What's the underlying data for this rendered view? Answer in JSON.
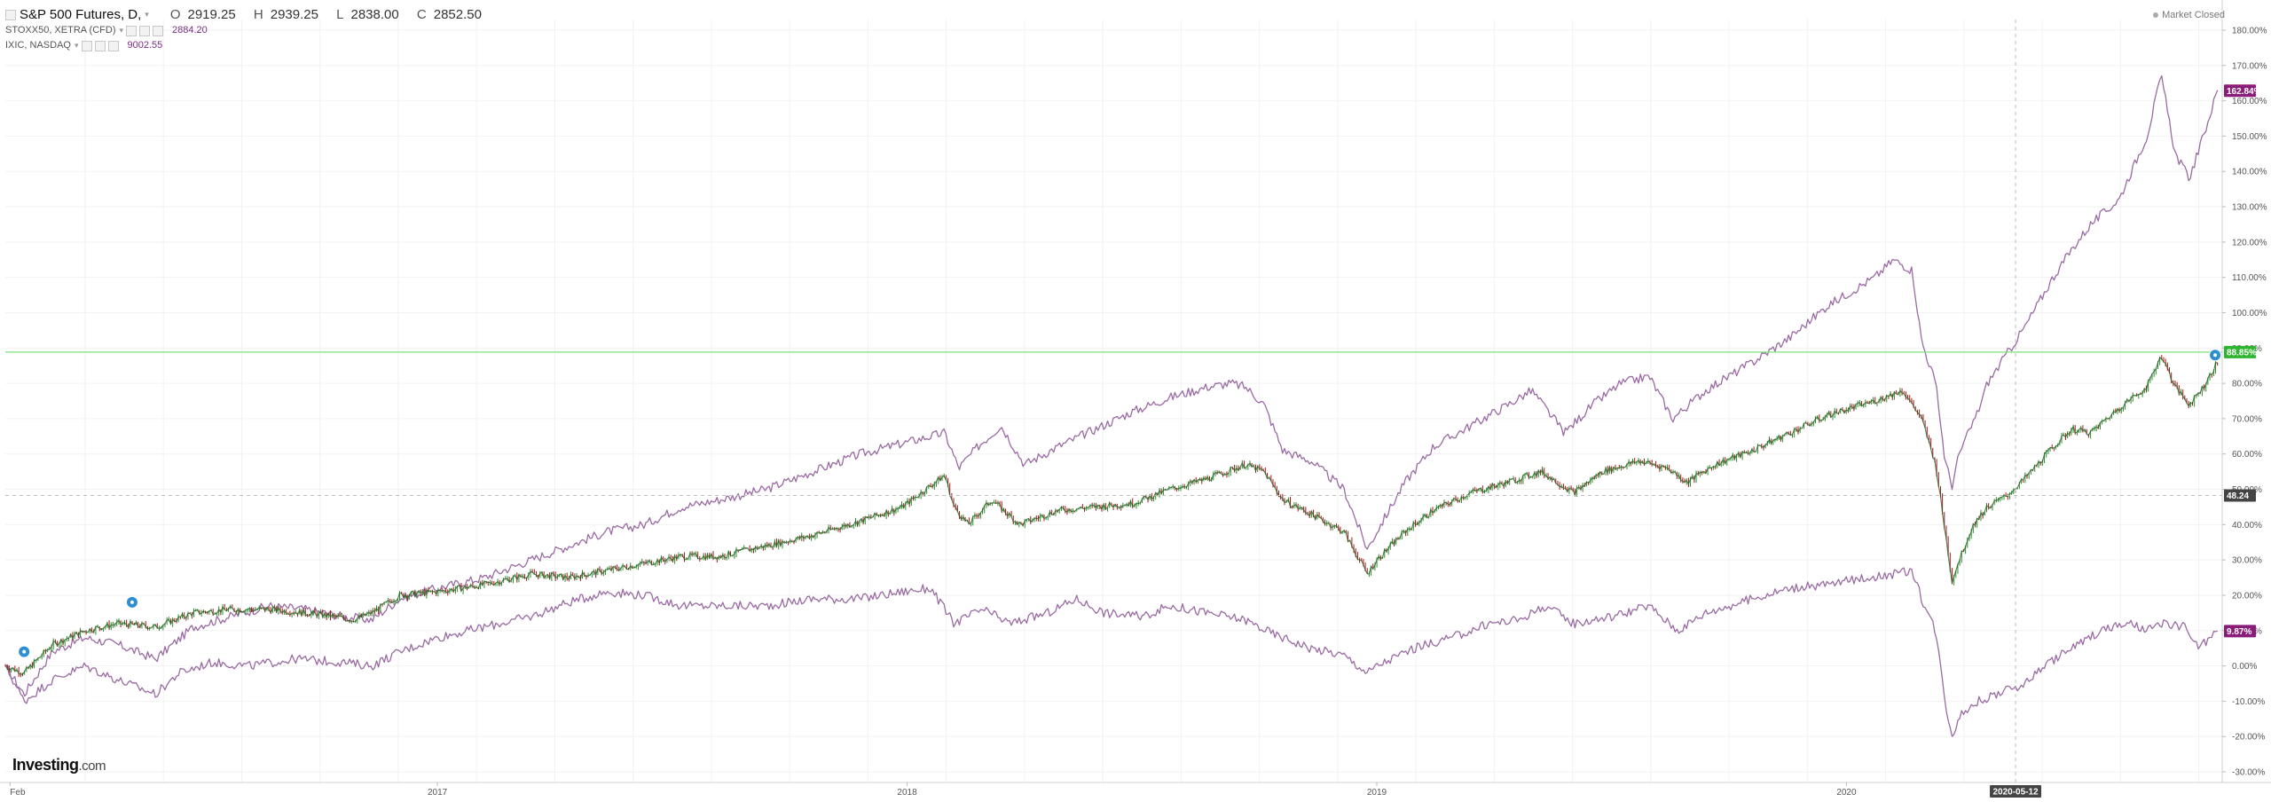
{
  "header": {
    "title": "S&P 500 Futures, D,",
    "ohlc": [
      {
        "key": "O",
        "value": "2919.25"
      },
      {
        "key": "H",
        "value": "2939.25"
      },
      {
        "key": "L",
        "value": "2838.00"
      },
      {
        "key": "C",
        "value": "2852.50"
      }
    ],
    "series_legend": [
      {
        "label": "STOXX50, XETRA (CFD)",
        "value": "2884.20"
      },
      {
        "label": "IXIC, NASDAQ",
        "value": "9002.55"
      }
    ],
    "market_status": "Market Closed"
  },
  "branding": {
    "logo": "Investing",
    "logo_suffix": ".com"
  },
  "colors": {
    "candle_up": "#2e8b2e",
    "candle_down": "#a3151a",
    "series_line": "#9a6aa3",
    "hline": "#7ee07e",
    "tag_main": "#2fb52f",
    "tag_compare": "#8b1d7a",
    "tag_crosshair": "#444444",
    "event_marker": "#2b8fd1",
    "grid": "#f2f2f2"
  },
  "chart_data": {
    "type": "line",
    "y_unit": "%",
    "ylim": [
      -33,
      183
    ],
    "y_ticks": [
      -30,
      -20,
      -10,
      0,
      10,
      20,
      30,
      40,
      50,
      60,
      70,
      80,
      90,
      100,
      110,
      120,
      130,
      140,
      150,
      160,
      170,
      180
    ],
    "y_tick_labels": [
      "-30.00%",
      "-20.00%",
      "-10.00%",
      "0.00%",
      "10.00%",
      "20.00%",
      "30.00%",
      "40.00%",
      "50.00%",
      "60.00%",
      "70.00%",
      "80.00%",
      "90.00%",
      "100.00%",
      "110.00%",
      "120.00%",
      "130.00%",
      "140.00%",
      "150.00%",
      "160.00%",
      "170.00%",
      "180.00%"
    ],
    "xlim": [
      2016.08,
      2020.8
    ],
    "x_ticks": [
      {
        "x": 2016.09,
        "label": "Feb"
      },
      {
        "x": 2017.0,
        "label": "2017"
      },
      {
        "x": 2018.0,
        "label": "2018"
      },
      {
        "x": 2019.0,
        "label": "2019"
      },
      {
        "x": 2020.0,
        "label": "2020"
      }
    ],
    "crosshair": {
      "x": 2020.36,
      "x_label": "2020-05-12",
      "y": 48.24,
      "y_label": "48.24"
    },
    "hline": {
      "y": 88.85,
      "label": "88.85%"
    },
    "last_value_tags": [
      {
        "series": "IXIC, NASDAQ",
        "y": 162.84,
        "label": "162.84%"
      },
      {
        "series": "STOXX50, XETRA (CFD)",
        "y": 9.87,
        "label": "9.87%"
      }
    ],
    "series": [
      {
        "name": "S&P 500 Futures",
        "style": "candles",
        "points": [
          [
            2016.08,
            0
          ],
          [
            2016.12,
            -2
          ],
          [
            2016.18,
            6
          ],
          [
            2016.25,
            10
          ],
          [
            2016.32,
            12
          ],
          [
            2016.4,
            11
          ],
          [
            2016.48,
            15
          ],
          [
            2016.56,
            16
          ],
          [
            2016.64,
            16
          ],
          [
            2016.72,
            15
          ],
          [
            2016.78,
            14
          ],
          [
            2016.82,
            13
          ],
          [
            2016.86,
            15
          ],
          [
            2016.92,
            20
          ],
          [
            2017.0,
            21
          ],
          [
            2017.1,
            23
          ],
          [
            2017.2,
            26
          ],
          [
            2017.28,
            25
          ],
          [
            2017.36,
            27
          ],
          [
            2017.44,
            29
          ],
          [
            2017.52,
            31
          ],
          [
            2017.6,
            31
          ],
          [
            2017.7,
            34
          ],
          [
            2017.8,
            37
          ],
          [
            2017.9,
            41
          ],
          [
            2017.99,
            45
          ],
          [
            2018.08,
            54
          ],
          [
            2018.1,
            45
          ],
          [
            2018.13,
            40
          ],
          [
            2018.18,
            47
          ],
          [
            2018.24,
            40
          ],
          [
            2018.32,
            44
          ],
          [
            2018.4,
            45
          ],
          [
            2018.48,
            46
          ],
          [
            2018.56,
            50
          ],
          [
            2018.64,
            53
          ],
          [
            2018.72,
            57
          ],
          [
            2018.76,
            55
          ],
          [
            2018.8,
            47
          ],
          [
            2018.86,
            43
          ],
          [
            2018.93,
            38
          ],
          [
            2018.98,
            26
          ],
          [
            2019.0,
            30
          ],
          [
            2019.06,
            38
          ],
          [
            2019.12,
            44
          ],
          [
            2019.2,
            49
          ],
          [
            2019.28,
            52
          ],
          [
            2019.35,
            55
          ],
          [
            2019.42,
            49
          ],
          [
            2019.48,
            55
          ],
          [
            2019.56,
            58
          ],
          [
            2019.62,
            56
          ],
          [
            2019.66,
            52
          ],
          [
            2019.72,
            57
          ],
          [
            2019.8,
            61
          ],
          [
            2019.88,
            66
          ],
          [
            2019.96,
            71
          ],
          [
            2020.06,
            75
          ],
          [
            2020.12,
            78
          ],
          [
            2020.16,
            70
          ],
          [
            2020.19,
            57
          ],
          [
            2020.21,
            38
          ],
          [
            2020.225,
            24
          ],
          [
            2020.24,
            30
          ],
          [
            2020.27,
            40
          ],
          [
            2020.3,
            45
          ],
          [
            2020.34,
            48
          ],
          [
            2020.38,
            53
          ],
          [
            2020.44,
            62
          ],
          [
            2020.48,
            67
          ],
          [
            2020.52,
            66
          ],
          [
            2020.58,
            73
          ],
          [
            2020.64,
            79
          ],
          [
            2020.67,
            88
          ],
          [
            2020.7,
            79
          ],
          [
            2020.73,
            74
          ],
          [
            2020.76,
            79
          ],
          [
            2020.79,
            86
          ]
        ]
      },
      {
        "name": "IXIC, NASDAQ",
        "style": "line",
        "points": [
          [
            2016.08,
            0
          ],
          [
            2016.12,
            -8
          ],
          [
            2016.18,
            4
          ],
          [
            2016.25,
            8
          ],
          [
            2016.32,
            6
          ],
          [
            2016.4,
            2
          ],
          [
            2016.48,
            11
          ],
          [
            2016.56,
            14
          ],
          [
            2016.64,
            17
          ],
          [
            2016.72,
            16
          ],
          [
            2016.8,
            14
          ],
          [
            2016.86,
            13
          ],
          [
            2016.92,
            19
          ],
          [
            2017.0,
            22
          ],
          [
            2017.1,
            25
          ],
          [
            2017.2,
            30
          ],
          [
            2017.28,
            34
          ],
          [
            2017.36,
            38
          ],
          [
            2017.44,
            40
          ],
          [
            2017.52,
            45
          ],
          [
            2017.6,
            47
          ],
          [
            2017.7,
            50
          ],
          [
            2017.8,
            55
          ],
          [
            2017.9,
            60
          ],
          [
            2017.99,
            63
          ],
          [
            2018.08,
            66
          ],
          [
            2018.11,
            56
          ],
          [
            2018.15,
            62
          ],
          [
            2018.2,
            68
          ],
          [
            2018.25,
            57
          ],
          [
            2018.32,
            62
          ],
          [
            2018.4,
            67
          ],
          [
            2018.48,
            72
          ],
          [
            2018.56,
            76
          ],
          [
            2018.64,
            79
          ],
          [
            2018.69,
            80
          ],
          [
            2018.72,
            79
          ],
          [
            2018.76,
            74
          ],
          [
            2018.8,
            61
          ],
          [
            2018.86,
            58
          ],
          [
            2018.93,
            50
          ],
          [
            2018.98,
            33
          ],
          [
            2019.0,
            38
          ],
          [
            2019.06,
            52
          ],
          [
            2019.12,
            62
          ],
          [
            2019.2,
            68
          ],
          [
            2019.28,
            74
          ],
          [
            2019.33,
            78
          ],
          [
            2019.4,
            66
          ],
          [
            2019.46,
            74
          ],
          [
            2019.52,
            80
          ],
          [
            2019.58,
            82
          ],
          [
            2019.63,
            70
          ],
          [
            2019.7,
            78
          ],
          [
            2019.8,
            86
          ],
          [
            2019.88,
            93
          ],
          [
            2019.96,
            102
          ],
          [
            2020.06,
            110
          ],
          [
            2020.1,
            115
          ],
          [
            2020.14,
            112
          ],
          [
            2020.16,
            92
          ],
          [
            2020.19,
            80
          ],
          [
            2020.21,
            58
          ],
          [
            2020.225,
            51
          ],
          [
            2020.24,
            60
          ],
          [
            2020.28,
            72
          ],
          [
            2020.3,
            80
          ],
          [
            2020.34,
            88
          ],
          [
            2020.38,
            96
          ],
          [
            2020.44,
            110
          ],
          [
            2020.48,
            118
          ],
          [
            2020.52,
            125
          ],
          [
            2020.58,
            132
          ],
          [
            2020.64,
            150
          ],
          [
            2020.67,
            167
          ],
          [
            2020.7,
            145
          ],
          [
            2020.73,
            138
          ],
          [
            2020.76,
            150
          ],
          [
            2020.79,
            163
          ]
        ]
      },
      {
        "name": "STOXX50, XETRA (CFD)",
        "style": "line",
        "points": [
          [
            2016.08,
            0
          ],
          [
            2016.12,
            -10
          ],
          [
            2016.18,
            -4
          ],
          [
            2016.25,
            0
          ],
          [
            2016.32,
            -4
          ],
          [
            2016.4,
            -8
          ],
          [
            2016.45,
            -2
          ],
          [
            2016.52,
            1
          ],
          [
            2016.6,
            0
          ],
          [
            2016.7,
            2
          ],
          [
            2016.8,
            1
          ],
          [
            2016.86,
            0
          ],
          [
            2016.92,
            4
          ],
          [
            2017.0,
            8
          ],
          [
            2017.1,
            11
          ],
          [
            2017.2,
            14
          ],
          [
            2017.28,
            18
          ],
          [
            2017.36,
            21
          ],
          [
            2017.44,
            20
          ],
          [
            2017.52,
            17
          ],
          [
            2017.6,
            17
          ],
          [
            2017.7,
            17
          ],
          [
            2017.8,
            19
          ],
          [
            2017.9,
            19
          ],
          [
            2017.99,
            21
          ],
          [
            2018.05,
            22
          ],
          [
            2018.1,
            12
          ],
          [
            2018.16,
            16
          ],
          [
            2018.22,
            12
          ],
          [
            2018.3,
            15
          ],
          [
            2018.36,
            19
          ],
          [
            2018.42,
            15
          ],
          [
            2018.5,
            14
          ],
          [
            2018.56,
            17
          ],
          [
            2018.64,
            15
          ],
          [
            2018.72,
            13
          ],
          [
            2018.78,
            9
          ],
          [
            2018.86,
            5
          ],
          [
            2018.93,
            3
          ],
          [
            2018.98,
            -2
          ],
          [
            2019.0,
            0
          ],
          [
            2019.08,
            5
          ],
          [
            2019.16,
            8
          ],
          [
            2019.24,
            12
          ],
          [
            2019.3,
            13
          ],
          [
            2019.36,
            17
          ],
          [
            2019.42,
            12
          ],
          [
            2019.5,
            14
          ],
          [
            2019.58,
            17
          ],
          [
            2019.64,
            10
          ],
          [
            2019.7,
            15
          ],
          [
            2019.8,
            19
          ],
          [
            2019.88,
            22
          ],
          [
            2019.96,
            23
          ],
          [
            2020.04,
            25
          ],
          [
            2020.1,
            26
          ],
          [
            2020.14,
            27
          ],
          [
            2020.16,
            19
          ],
          [
            2020.19,
            10
          ],
          [
            2020.21,
            -10
          ],
          [
            2020.225,
            -20
          ],
          [
            2020.24,
            -14
          ],
          [
            2020.28,
            -10
          ],
          [
            2020.32,
            -8
          ],
          [
            2020.38,
            -5
          ],
          [
            2020.42,
            0
          ],
          [
            2020.48,
            5
          ],
          [
            2020.54,
            10
          ],
          [
            2020.6,
            12
          ],
          [
            2020.64,
            10
          ],
          [
            2020.68,
            12
          ],
          [
            2020.72,
            11
          ],
          [
            2020.75,
            5
          ],
          [
            2020.79,
            9.87
          ]
        ]
      }
    ]
  }
}
